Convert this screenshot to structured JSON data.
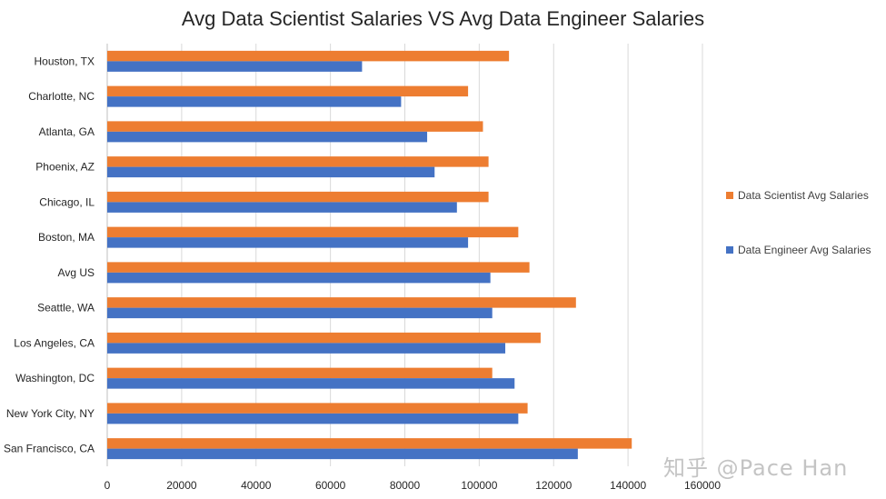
{
  "chart_data": {
    "type": "bar",
    "orientation": "horizontal",
    "title": "Avg Data Scientist Salaries VS Avg Data Engineer Salaries",
    "categories": [
      "Houston, TX",
      "Charlotte, NC",
      "Atlanta, GA",
      "Phoenix, AZ",
      "Chicago, IL",
      "Boston, MA",
      "Avg US",
      "Seattle, WA",
      "Los Angeles, CA",
      "Washington, DC",
      "New York City, NY",
      "San Francisco, CA"
    ],
    "series": [
      {
        "name": "Data Scientist Avg Salaries",
        "color": "#ED7D31",
        "values": [
          108000,
          97000,
          101000,
          102500,
          102500,
          110500,
          113500,
          126000,
          116500,
          103500,
          113000,
          141000
        ]
      },
      {
        "name": "Data Engineer Avg Salaries",
        "color": "#4472C4",
        "values": [
          68500,
          79000,
          86000,
          88000,
          94000,
          97000,
          103000,
          103500,
          107000,
          109500,
          110500,
          126500
        ]
      }
    ],
    "xlim": [
      0,
      160000
    ],
    "x_ticks": [
      "0",
      "20000",
      "40000",
      "60000",
      "80000",
      "100000",
      "120000",
      "140000",
      "160000"
    ],
    "grid": "vertical",
    "legend_position": "right"
  },
  "watermark": "知乎 @Pace Han"
}
